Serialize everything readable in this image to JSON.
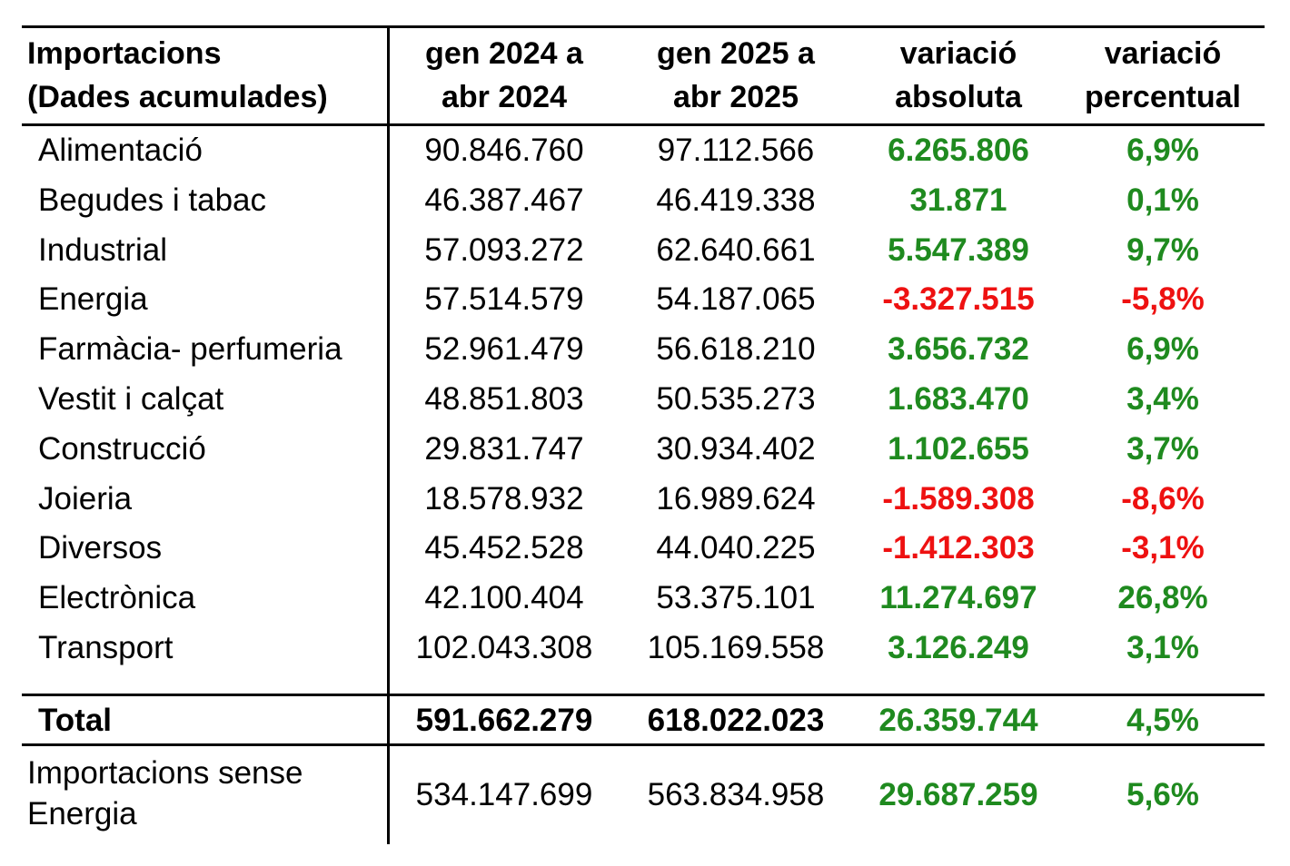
{
  "header": {
    "col0": [
      "Importacions",
      "(Dades acumulades)"
    ],
    "col1": [
      "gen 2024 a",
      "abr 2024"
    ],
    "col2": [
      "gen 2025 a",
      "abr 2025"
    ],
    "col3": [
      "variació",
      "absoluta"
    ],
    "col4": [
      "variació",
      "percentual"
    ]
  },
  "rows": [
    {
      "name": "Alimentació",
      "v2024": "90.846.760",
      "v2025": "97.112.566",
      "abs": "6.265.806",
      "pct": "6,9%",
      "trend": "positive"
    },
    {
      "name": "Begudes i tabac",
      "v2024": "46.387.467",
      "v2025": "46.419.338",
      "abs": "31.871",
      "pct": "0,1%",
      "trend": "positive"
    },
    {
      "name": "Industrial",
      "v2024": "57.093.272",
      "v2025": "62.640.661",
      "abs": "5.547.389",
      "pct": "9,7%",
      "trend": "positive"
    },
    {
      "name": "Energia",
      "v2024": "57.514.579",
      "v2025": "54.187.065",
      "abs": "-3.327.515",
      "pct": "-5,8%",
      "trend": "negative"
    },
    {
      "name": "Farmàcia- perfumeria",
      "v2024": "52.961.479",
      "v2025": "56.618.210",
      "abs": "3.656.732",
      "pct": "6,9%",
      "trend": "positive"
    },
    {
      "name": "Vestit i calçat",
      "v2024": "48.851.803",
      "v2025": "50.535.273",
      "abs": "1.683.470",
      "pct": "3,4%",
      "trend": "positive"
    },
    {
      "name": "Construcció",
      "v2024": "29.831.747",
      "v2025": "30.934.402",
      "abs": "1.102.655",
      "pct": "3,7%",
      "trend": "positive"
    },
    {
      "name": "Joieria",
      "v2024": "18.578.932",
      "v2025": "16.989.624",
      "abs": "-1.589.308",
      "pct": "-8,6%",
      "trend": "negative"
    },
    {
      "name": "Diversos",
      "v2024": "45.452.528",
      "v2025": "44.040.225",
      "abs": "-1.412.303",
      "pct": "-3,1%",
      "trend": "negative"
    },
    {
      "name": "Electrònica",
      "v2024": "42.100.404",
      "v2025": "53.375.101",
      "abs": "11.274.697",
      "pct": "26,8%",
      "trend": "positive"
    },
    {
      "name": "Transport",
      "v2024": "102.043.308",
      "v2025": "105.169.558",
      "abs": "3.126.249",
      "pct": "3,1%",
      "trend": "positive"
    }
  ],
  "total": {
    "name": "Total",
    "v2024": "591.662.279",
    "v2025": "618.022.023",
    "abs": "26.359.744",
    "pct": "4,5%",
    "trend": "positive"
  },
  "no_energy": {
    "name": [
      "Importacions sense",
      "Energia"
    ],
    "v2024": "534.147.699",
    "v2025": "563.834.958",
    "abs": "29.687.259",
    "pct": "5,6%",
    "trend": "positive"
  },
  "colors": {
    "positive": "#1f8a1f",
    "negative": "#ee1111"
  }
}
